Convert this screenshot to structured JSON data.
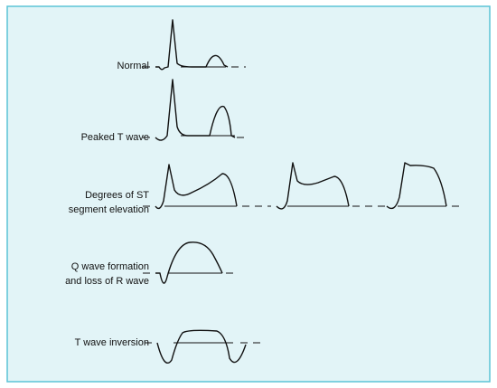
{
  "rows": [
    {
      "lines": [
        "Normal"
      ]
    },
    {
      "lines": [
        "Peaked T wave"
      ]
    },
    {
      "lines": [
        "Degrees of ST",
        "segment elevation"
      ]
    },
    {
      "lines": [
        "Q wave formation",
        "and loss of R wave"
      ]
    },
    {
      "lines": [
        "T wave inversion"
      ]
    }
  ]
}
